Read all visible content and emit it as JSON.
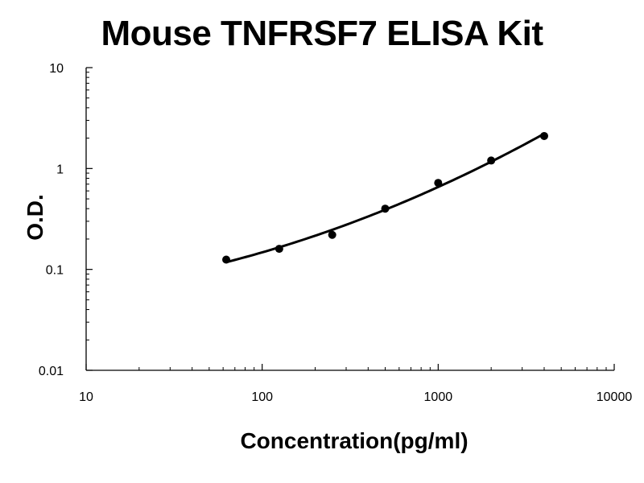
{
  "chart_data": {
    "type": "scatter",
    "title": "Mouse TNFRSF7 ELISA Kit",
    "xlabel": "Concentration(pg/ml)",
    "ylabel": "O.D.",
    "xscale": "log",
    "yscale": "log",
    "xlim": [
      10,
      10000
    ],
    "ylim": [
      0.01,
      10
    ],
    "x_ticks": [
      10,
      100,
      1000,
      10000
    ],
    "x_tick_labels": [
      "10",
      "100",
      "1000",
      "10000"
    ],
    "y_ticks": [
      0.01,
      0.1,
      1,
      10
    ],
    "y_tick_labels": [
      "0.01",
      "0.1",
      "1",
      "10"
    ],
    "grid": false,
    "legend": "none",
    "series": [
      {
        "x": [
          62.5,
          125,
          250,
          500,
          1000,
          2000,
          4000
        ],
        "y": [
          0.125,
          0.16,
          0.22,
          0.4,
          0.72,
          1.2,
          2.1
        ],
        "fit_line": true
      }
    ]
  }
}
